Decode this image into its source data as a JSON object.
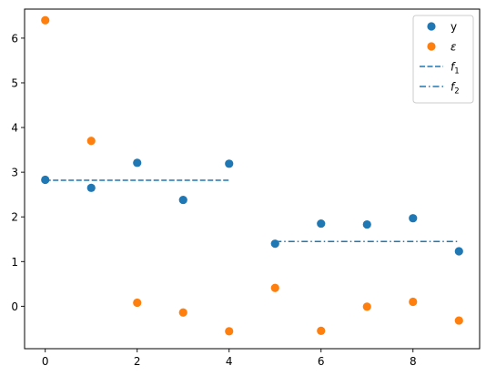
{
  "chart_data": {
    "type": "scatter",
    "title": "",
    "xlabel": "",
    "ylabel": "",
    "xlim": [
      -0.45,
      9.45
    ],
    "ylim": [
      -0.95,
      6.65
    ],
    "x_ticks": [
      0,
      2,
      4,
      6,
      8
    ],
    "y_ticks": [
      0,
      1,
      2,
      3,
      4,
      5,
      6
    ],
    "x_tick_labels": [
      "0",
      "2",
      "4",
      "6",
      "8"
    ],
    "y_tick_labels": [
      "0",
      "1",
      "2",
      "3",
      "4",
      "5",
      "6"
    ],
    "grid": false,
    "legend_position": "top-right",
    "series": [
      {
        "name": "y",
        "kind": "scatter",
        "color": "#1f77b4",
        "x": [
          0,
          1,
          2,
          3,
          4,
          5,
          6,
          7,
          8,
          9
        ],
        "y": [
          2.83,
          2.65,
          3.21,
          2.38,
          3.19,
          1.4,
          1.85,
          1.83,
          1.97,
          1.23
        ]
      },
      {
        "name": "ε",
        "kind": "scatter",
        "color": "#ff7f0e",
        "x": [
          0,
          1,
          2,
          3,
          4,
          5,
          6,
          7,
          8,
          9
        ],
        "y": [
          6.4,
          3.7,
          0.08,
          -0.14,
          -0.56,
          0.41,
          -0.55,
          -0.01,
          0.1,
          -0.32
        ]
      },
      {
        "name": "f1",
        "kind": "line",
        "style": "dashed",
        "color": "#1f77b4",
        "x": [
          0,
          4
        ],
        "y": [
          2.82,
          2.82
        ]
      },
      {
        "name": "f2",
        "kind": "line",
        "style": "dashdot",
        "color": "#1f77b4",
        "x": [
          5,
          9
        ],
        "y": [
          1.45,
          1.45
        ]
      }
    ],
    "legend": [
      {
        "label": "y",
        "sub": "",
        "italic": false,
        "marker": "dot",
        "color": "#1f77b4"
      },
      {
        "label": "ε",
        "sub": "",
        "italic": true,
        "marker": "dot",
        "color": "#ff7f0e"
      },
      {
        "label": "f",
        "sub": "1",
        "italic": true,
        "marker": "dashed",
        "color": "#1f77b4"
      },
      {
        "label": "f",
        "sub": "2",
        "italic": true,
        "marker": "dashdot",
        "color": "#1f77b4"
      }
    ]
  }
}
